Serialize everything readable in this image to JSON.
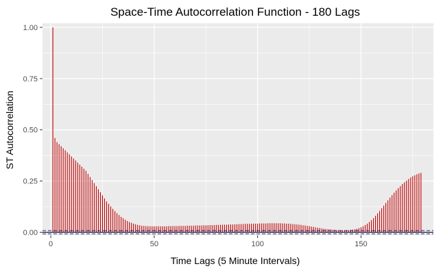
{
  "chart_data": {
    "type": "bar",
    "title": "Space-Time Autocorrelation Function - 180 Lags",
    "xlabel": "Time Lags (5 Minute Intervals)",
    "ylabel": "ST Autocorrelation",
    "xlim": [
      -4,
      185
    ],
    "ylim": [
      -0.015,
      1.02
    ],
    "x_ticks": [
      0,
      50,
      100,
      150
    ],
    "y_ticks": [
      0.0,
      0.25,
      0.5,
      0.75,
      1.0
    ],
    "y_tick_labels": [
      "0.00",
      "0.25",
      "0.50",
      "0.75",
      "1.00"
    ],
    "grid": true,
    "lags": [
      1,
      181
    ],
    "values": [
      1.0,
      0.46,
      0.44,
      0.43,
      0.42,
      0.41,
      0.4,
      0.39,
      0.38,
      0.37,
      0.36,
      0.35,
      0.34,
      0.33,
      0.32,
      0.31,
      0.3,
      0.285,
      0.27,
      0.255,
      0.24,
      0.225,
      0.21,
      0.195,
      0.18,
      0.165,
      0.15,
      0.138,
      0.126,
      0.114,
      0.103,
      0.093,
      0.084,
      0.075,
      0.068,
      0.061,
      0.055,
      0.05,
      0.046,
      0.042,
      0.039,
      0.036,
      0.034,
      0.032,
      0.031,
      0.03,
      0.03,
      0.029,
      0.029,
      0.029,
      0.029,
      0.029,
      0.029,
      0.029,
      0.029,
      0.029,
      0.03,
      0.03,
      0.03,
      0.03,
      0.03,
      0.031,
      0.031,
      0.031,
      0.031,
      0.032,
      0.032,
      0.032,
      0.032,
      0.033,
      0.033,
      0.033,
      0.033,
      0.034,
      0.034,
      0.034,
      0.035,
      0.035,
      0.035,
      0.036,
      0.036,
      0.036,
      0.037,
      0.037,
      0.037,
      0.038,
      0.038,
      0.038,
      0.039,
      0.039,
      0.04,
      0.04,
      0.04,
      0.041,
      0.041,
      0.041,
      0.042,
      0.042,
      0.042,
      0.042,
      0.043,
      0.043,
      0.043,
      0.043,
      0.044,
      0.044,
      0.044,
      0.044,
      0.044,
      0.044,
      0.044,
      0.043,
      0.043,
      0.042,
      0.042,
      0.041,
      0.04,
      0.039,
      0.038,
      0.037,
      0.036,
      0.034,
      0.033,
      0.031,
      0.03,
      0.028,
      0.026,
      0.024,
      0.022,
      0.021,
      0.019,
      0.017,
      0.016,
      0.015,
      0.014,
      0.013,
      0.012,
      0.011,
      0.011,
      0.01,
      0.01,
      0.01,
      0.01,
      0.011,
      0.012,
      0.013,
      0.015,
      0.017,
      0.02,
      0.024,
      0.029,
      0.035,
      0.042,
      0.05,
      0.059,
      0.069,
      0.08,
      0.092,
      0.104,
      0.117,
      0.13,
      0.143,
      0.156,
      0.169,
      0.181,
      0.193,
      0.204,
      0.215,
      0.225,
      0.235,
      0.244,
      0.252,
      0.26,
      0.267,
      0.273,
      0.278,
      0.283,
      0.287,
      0.29
    ],
    "bar_color": "#c00000",
    "confidence_bounds": [
      -0.008,
      0.008
    ],
    "confidence_color": "#1f1f8f",
    "zero_line_color": "#000000",
    "panel_background": "#ebebeb",
    "grid_color": "#ffffff"
  }
}
